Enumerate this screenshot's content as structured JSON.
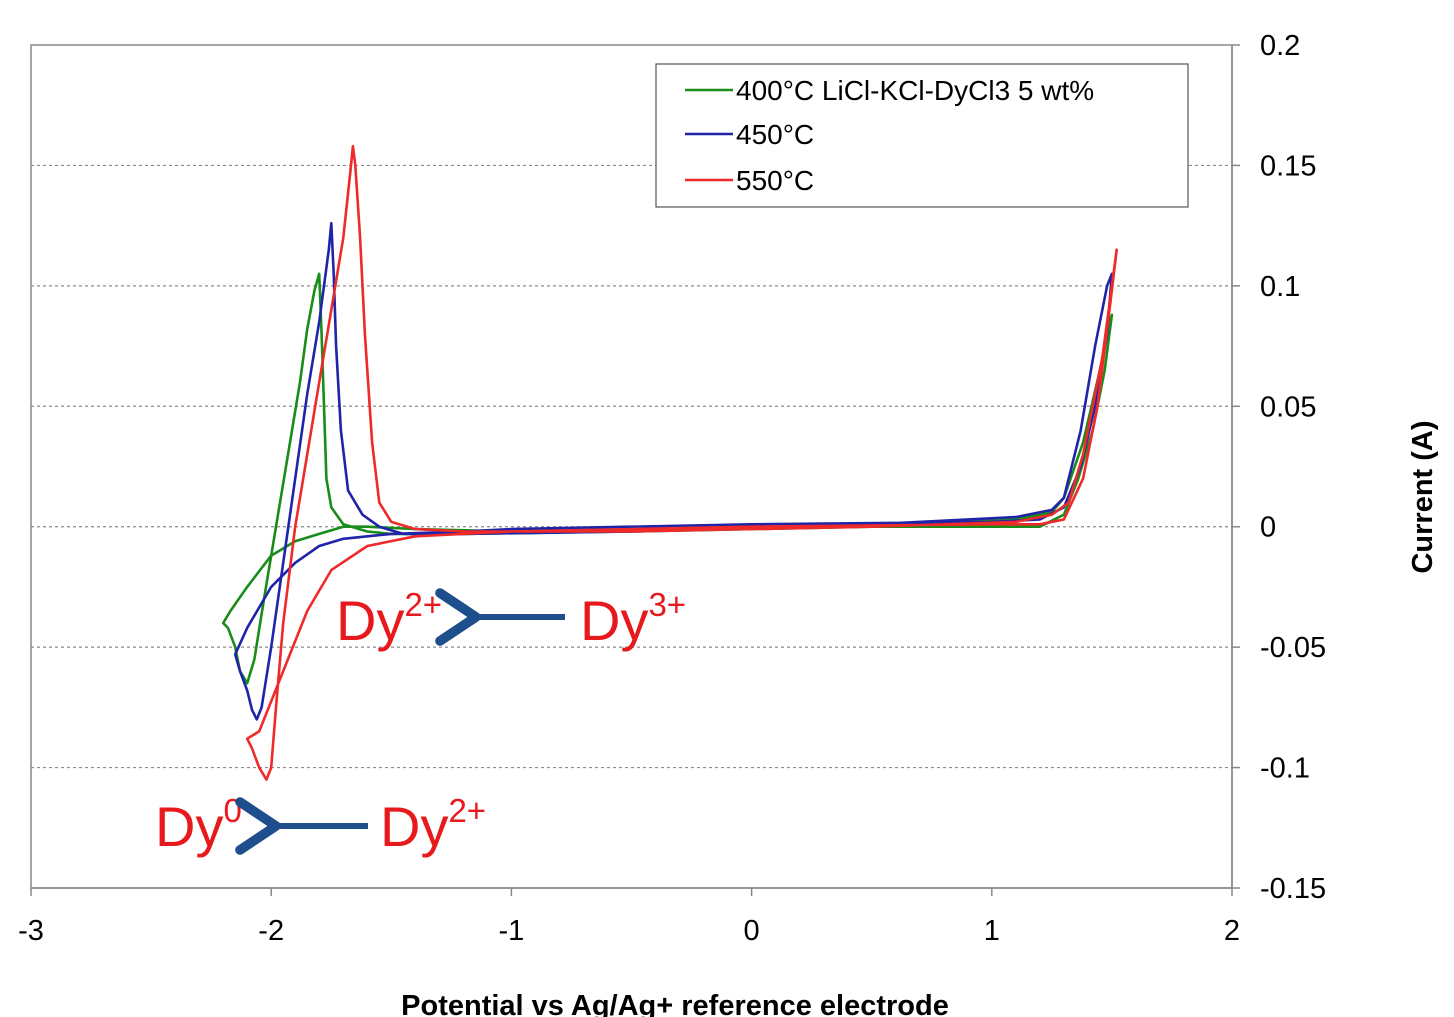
{
  "chart_data": {
    "type": "line",
    "title": "",
    "xlabel": "Potential vs Ag/Ag+ reference electrode",
    "ylabel": "Current (A)",
    "xlim": [
      -3,
      2
    ],
    "ylim": [
      -0.15,
      0.2
    ],
    "x_ticks": [
      "-3",
      "-2",
      "-1",
      "0",
      "1",
      "2"
    ],
    "y_ticks": [
      "0.2",
      "0.15",
      "0.1",
      "0.05",
      "0",
      "-0.05",
      "-0.1",
      "-0.15"
    ],
    "y_axis_side": "right",
    "grid": "horizontal dotted",
    "legend_position": "top-right",
    "series": [
      {
        "name": "400°C LiCl-KCl-DyCl3 5 wt%",
        "color": "#1a8c1a",
        "x": [
          -1.0,
          0.0,
          1.0,
          1.2,
          1.3,
          1.36,
          1.42,
          1.47,
          1.5,
          1.49,
          1.45,
          1.38,
          1.3,
          1.25,
          1.1,
          0.5,
          -0.5,
          -1.2,
          -1.5,
          -1.6,
          -1.7,
          -1.75,
          -1.77,
          -1.78,
          -1.79,
          -1.8,
          -1.82,
          -1.85,
          -1.88,
          -1.93,
          -1.98,
          -2.03,
          -2.07,
          -2.1,
          -2.13,
          -2.15,
          -2.18,
          -2.2,
          -2.17,
          -2.1,
          -2.0,
          -1.9,
          -1.8,
          -1.7,
          -1.6,
          -1.4,
          -1.0
        ],
        "y": [
          -0.002,
          0.0,
          0.0,
          0.0,
          0.005,
          0.02,
          0.04,
          0.065,
          0.088,
          0.085,
          0.065,
          0.035,
          0.012,
          0.006,
          0.003,
          0.0,
          -0.002,
          -0.003,
          -0.003,
          -0.002,
          0.001,
          0.008,
          0.02,
          0.05,
          0.08,
          0.105,
          0.098,
          0.082,
          0.06,
          0.03,
          0.0,
          -0.03,
          -0.055,
          -0.065,
          -0.06,
          -0.05,
          -0.042,
          -0.04,
          -0.035,
          -0.025,
          -0.012,
          -0.006,
          -0.003,
          0.0,
          0.0,
          -0.001,
          -0.002
        ]
      },
      {
        "name": "450°C",
        "color": "#1f24a8",
        "x": [
          -1.0,
          0.0,
          1.0,
          1.2,
          1.3,
          1.37,
          1.43,
          1.48,
          1.5,
          1.48,
          1.43,
          1.37,
          1.3,
          1.25,
          1.1,
          0.5,
          -0.5,
          -1.2,
          -1.45,
          -1.55,
          -1.62,
          -1.68,
          -1.71,
          -1.73,
          -1.74,
          -1.75,
          -1.76,
          -1.8,
          -1.85,
          -1.9,
          -1.95,
          -2.0,
          -2.04,
          -2.06,
          -2.08,
          -2.1,
          -2.13,
          -2.15,
          -2.1,
          -2.0,
          -1.9,
          -1.8,
          -1.7,
          -1.5,
          -1.2,
          -1.0
        ],
        "y": [
          -0.001,
          0.001,
          0.002,
          0.003,
          0.008,
          0.025,
          0.05,
          0.08,
          0.105,
          0.1,
          0.075,
          0.04,
          0.012,
          0.007,
          0.004,
          0.001,
          -0.002,
          -0.003,
          -0.003,
          0.0,
          0.005,
          0.015,
          0.04,
          0.075,
          0.105,
          0.126,
          0.115,
          0.085,
          0.055,
          0.02,
          -0.015,
          -0.05,
          -0.075,
          -0.08,
          -0.076,
          -0.068,
          -0.06,
          -0.053,
          -0.042,
          -0.025,
          -0.015,
          -0.008,
          -0.005,
          -0.003,
          -0.002,
          -0.001
        ]
      },
      {
        "name": "550°C",
        "color": "#ee2a2a",
        "x": [
          -1.0,
          0.0,
          1.0,
          1.2,
          1.3,
          1.38,
          1.44,
          1.49,
          1.52,
          1.5,
          1.46,
          1.38,
          1.32,
          1.25,
          1.1,
          0.5,
          -0.5,
          -1.2,
          -1.4,
          -1.5,
          -1.55,
          -1.58,
          -1.61,
          -1.63,
          -1.65,
          -1.66,
          -1.67,
          -1.7,
          -1.75,
          -1.8,
          -1.85,
          -1.9,
          -1.95,
          -1.98,
          -2.0,
          -2.02,
          -2.05,
          -2.08,
          -2.1,
          -2.05,
          -1.95,
          -1.85,
          -1.75,
          -1.6,
          -1.4,
          -1.0
        ],
        "y": [
          -0.002,
          0.0,
          0.001,
          0.001,
          0.003,
          0.02,
          0.05,
          0.09,
          0.115,
          0.1,
          0.07,
          0.03,
          0.01,
          0.005,
          0.002,
          0.0,
          -0.002,
          -0.002,
          -0.001,
          0.002,
          0.01,
          0.035,
          0.08,
          0.12,
          0.15,
          0.158,
          0.148,
          0.12,
          0.09,
          0.06,
          0.03,
          0.0,
          -0.04,
          -0.075,
          -0.1,
          -0.105,
          -0.1,
          -0.092,
          -0.088,
          -0.085,
          -0.06,
          -0.035,
          -0.018,
          -0.008,
          -0.004,
          -0.002
        ]
      }
    ],
    "annotations": [
      {
        "base": "Dy",
        "sup": "2+",
        "target_base": "Dy",
        "target_sup": "3+",
        "x": -1.25,
        "y": -0.037,
        "arrow": "left"
      },
      {
        "base": "Dy",
        "sup": "0",
        "target_base": "Dy",
        "target_sup": "2+",
        "x": -2.0,
        "y": -0.12,
        "arrow": "left"
      }
    ]
  }
}
